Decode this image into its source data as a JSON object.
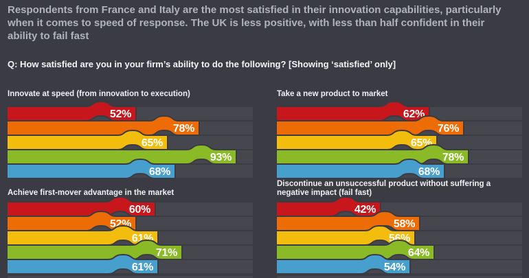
{
  "header": {
    "intro": "Respondents from France and Italy are the most satisfied in their innovation capabilities, particularly when it comes to speed of response. The UK is less positive, with less than half confident in their ability to fail fast",
    "question": "Q: How satisfied are you in your firm’s ability to do the following? [Showing ‘satisfied’ only]"
  },
  "colors": {
    "background": "#3b3b43",
    "track": "#46464e",
    "bar_red": "#c8161d",
    "bar_orange": "#ed6c05",
    "bar_yellow": "#f2bd0d",
    "bar_green": "#8aba25",
    "bar_blue": "#479fce",
    "header_text": "#afb3bc",
    "question_text": "#f4f5f7",
    "value_label": "#ffffff"
  },
  "chart_data": {
    "type": "bar",
    "orientation": "horizontal",
    "unit": "%",
    "xlim": [
      0,
      100
    ],
    "grid": false,
    "legend": "none",
    "value_labels": "inside-end",
    "series_colors": [
      "#c8161d",
      "#ed6c05",
      "#f2bd0d",
      "#8aba25",
      "#479fce"
    ],
    "charts": [
      {
        "title": "Innovate at speed (from innovation to execution)",
        "values": [
          52,
          78,
          65,
          93,
          68
        ]
      },
      {
        "title": "Take a new product to market",
        "values": [
          62,
          76,
          65,
          78,
          68
        ]
      },
      {
        "title": "Achieve first-mover advantage in the market",
        "values": [
          60,
          52,
          61,
          71,
          61
        ]
      },
      {
        "title": "Discontinue an unsuccessful product without suffering a negative impact (fail fast)",
        "values": [
          42,
          58,
          56,
          64,
          54
        ]
      }
    ]
  }
}
